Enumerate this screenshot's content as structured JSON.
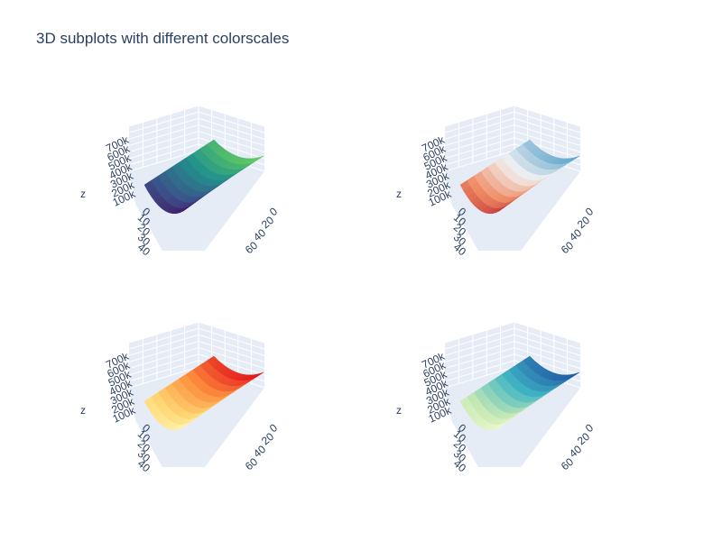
{
  "title": "3D subplots with different colorscales",
  "chart_data": [
    {
      "type": "surface",
      "colorscale": "Viridis",
      "colors": [
        "#440154",
        "#3b528b",
        "#21918c",
        "#5ec962",
        "#fde725"
      ],
      "zlabel": "z",
      "z_ticks": [
        "100k",
        "200k",
        "300k",
        "400k",
        "500k",
        "600k",
        "700k"
      ],
      "z_range": [
        0,
        700000
      ],
      "x_ticks": [
        "0",
        "10",
        "20",
        "30",
        "40"
      ],
      "y_ticks": [
        "0",
        "20",
        "40",
        "60"
      ]
    },
    {
      "type": "surface",
      "colorscale": "RdBu",
      "colors": [
        "#b2182b",
        "#ef8a62",
        "#f2f2f2",
        "#67a9cf",
        "#08306b"
      ],
      "zlabel": "z",
      "z_ticks": [
        "100k",
        "200k",
        "300k",
        "400k",
        "500k",
        "600k",
        "700k"
      ],
      "z_range": [
        0,
        700000
      ],
      "x_ticks": [
        "0",
        "10",
        "20",
        "30",
        "40"
      ],
      "y_ticks": [
        "0",
        "20",
        "40",
        "60"
      ]
    },
    {
      "type": "surface",
      "colorscale": "YlOrRd",
      "colors": [
        "#ffffcc",
        "#fed976",
        "#fd8d3c",
        "#e31a1c",
        "#800026"
      ],
      "zlabel": "z",
      "z_ticks": [
        "100k",
        "200k",
        "300k",
        "400k",
        "500k",
        "600k",
        "700k"
      ],
      "z_range": [
        0,
        700000
      ],
      "x_ticks": [
        "0",
        "10",
        "20",
        "30",
        "40"
      ],
      "y_ticks": [
        "0",
        "20",
        "40",
        "60"
      ]
    },
    {
      "type": "surface",
      "colorscale": "YlGnBu",
      "colors": [
        "#ffffd9",
        "#c7e9b4",
        "#41b6c4",
        "#225ea8",
        "#081d58"
      ],
      "zlabel": "z",
      "z_ticks": [
        "100k",
        "200k",
        "300k",
        "400k",
        "500k",
        "600k",
        "700k"
      ],
      "z_range": [
        0,
        700000
      ],
      "x_ticks": [
        "0",
        "10",
        "20",
        "30",
        "40"
      ],
      "y_ticks": [
        "0",
        "20",
        "40",
        "60"
      ]
    }
  ]
}
